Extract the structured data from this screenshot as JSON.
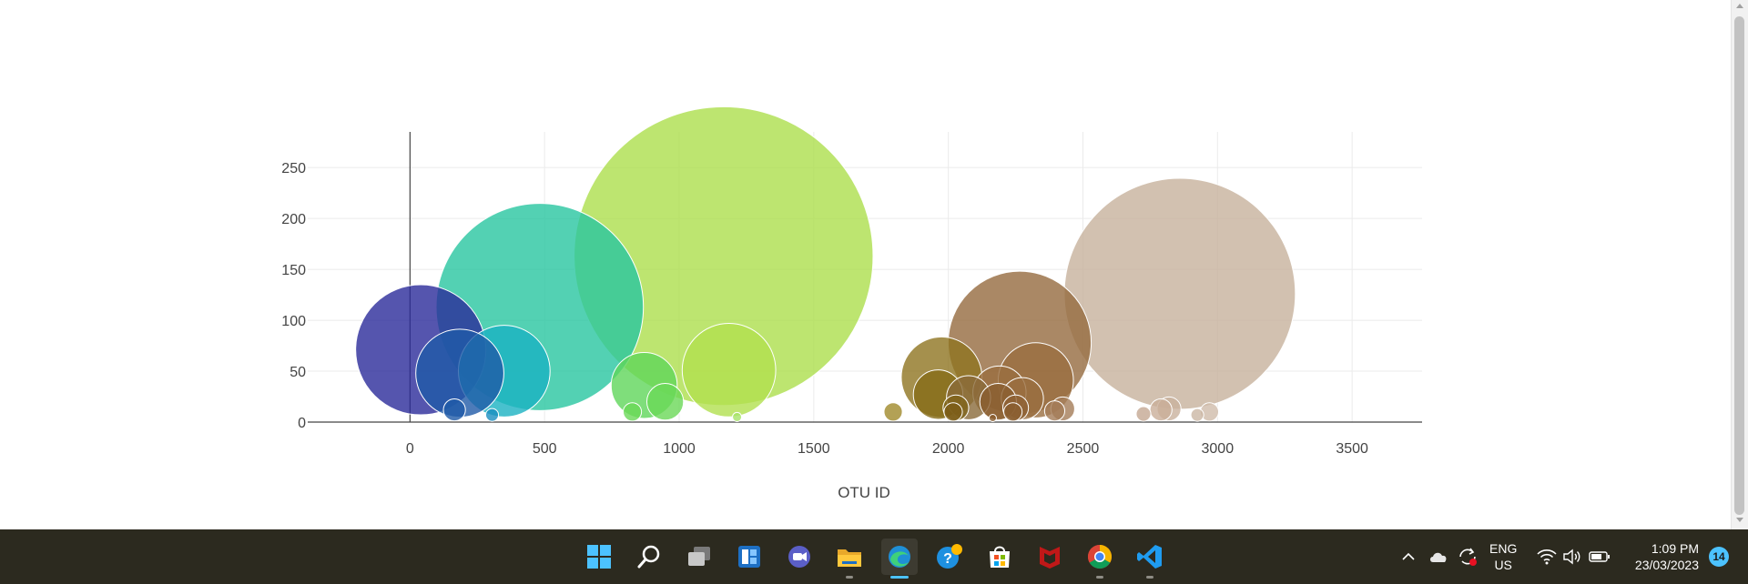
{
  "chart_data": {
    "type": "scatter",
    "mode": "bubble",
    "title": "",
    "xlabel": "OTU ID",
    "ylabel": "",
    "xlim": [
      -380,
      3760
    ],
    "ylim": [
      0,
      285
    ],
    "xticks": [
      0,
      500,
      1000,
      1500,
      2000,
      2500,
      3000,
      3500
    ],
    "yticks": [
      0,
      50,
      100,
      150,
      200,
      250
    ],
    "grid": true,
    "colorscale": "Earth",
    "points": [
      {
        "x": 40,
        "y": 71,
        "size": 71,
        "color": "#2a2a9a"
      },
      {
        "x": 185,
        "y": 48,
        "size": 48,
        "color": "#1f5aa8"
      },
      {
        "x": 165,
        "y": 12,
        "size": 12,
        "color": "#1f5aa8"
      },
      {
        "x": 305,
        "y": 7,
        "size": 7,
        "color": "#1a8fc0"
      },
      {
        "x": 350,
        "y": 50,
        "size": 50,
        "color": "#1ab2c2"
      },
      {
        "x": 482,
        "y": 113,
        "size": 113,
        "color": "#28c6a0"
      },
      {
        "x": 870,
        "y": 36,
        "size": 36,
        "color": "#5fd65a"
      },
      {
        "x": 948,
        "y": 20,
        "size": 20,
        "color": "#6ad858"
      },
      {
        "x": 826,
        "y": 10,
        "size": 10,
        "color": "#6ad858"
      },
      {
        "x": 1215,
        "y": 5,
        "size": 5,
        "color": "#a6e468"
      },
      {
        "x": 1165,
        "y": 163,
        "size": 163,
        "color": "#acdf4c"
      },
      {
        "x": 1185,
        "y": 51,
        "size": 51,
        "color": "#b1e04f"
      },
      {
        "x": 1795,
        "y": 10,
        "size": 10,
        "color": "#a08a2a"
      },
      {
        "x": 1975,
        "y": 44,
        "size": 44,
        "color": "#8e7420"
      },
      {
        "x": 1962,
        "y": 27,
        "size": 27,
        "color": "#866b18"
      },
      {
        "x": 2028,
        "y": 14,
        "size": 14,
        "color": "#80641a"
      },
      {
        "x": 2018,
        "y": 10,
        "size": 10,
        "color": "#7c5c18"
      },
      {
        "x": 2075,
        "y": 24,
        "size": 24,
        "color": "#8a6a3a"
      },
      {
        "x": 2265,
        "y": 78,
        "size": 78,
        "color": "#956a3f"
      },
      {
        "x": 2325,
        "y": 41,
        "size": 41,
        "color": "#9a6e40"
      },
      {
        "x": 2190,
        "y": 29,
        "size": 29,
        "color": "#9a6e40"
      },
      {
        "x": 2185,
        "y": 20,
        "size": 20,
        "color": "#8a5e30"
      },
      {
        "x": 2275,
        "y": 23,
        "size": 23,
        "color": "#9a6e40"
      },
      {
        "x": 2250,
        "y": 14,
        "size": 14,
        "color": "#8e6234"
      },
      {
        "x": 2240,
        "y": 10,
        "size": 10,
        "color": "#8a5e30"
      },
      {
        "x": 2165,
        "y": 4,
        "size": 4,
        "color": "#8a5e30"
      },
      {
        "x": 2395,
        "y": 11,
        "size": 11,
        "color": "#a47c58"
      },
      {
        "x": 2425,
        "y": 13,
        "size": 13,
        "color": "#a47c58"
      },
      {
        "x": 2860,
        "y": 126,
        "size": 126,
        "color": "#c7b19c"
      },
      {
        "x": 2725,
        "y": 8,
        "size": 8,
        "color": "#c4a892"
      },
      {
        "x": 2790,
        "y": 12,
        "size": 12,
        "color": "#c9ae98"
      },
      {
        "x": 2820,
        "y": 13,
        "size": 13,
        "color": "#c9b29e"
      },
      {
        "x": 2925,
        "y": 7,
        "size": 7,
        "color": "#cbb7a4"
      },
      {
        "x": 2970,
        "y": 10,
        "size": 10,
        "color": "#cfbcaa"
      }
    ]
  },
  "taskbar": {
    "apps": [
      "start-icon",
      "search-icon",
      "task-view-icon",
      "widgets-icon",
      "teams-icon",
      "file-explorer-icon",
      "edge-icon",
      "tips-icon",
      "store-icon",
      "mcafee-icon",
      "chrome-icon",
      "vscode-icon"
    ],
    "lang_top": "ENG",
    "lang_bottom": "US",
    "time": "1:09 PM",
    "date": "23/03/2023",
    "notifications": "14"
  }
}
